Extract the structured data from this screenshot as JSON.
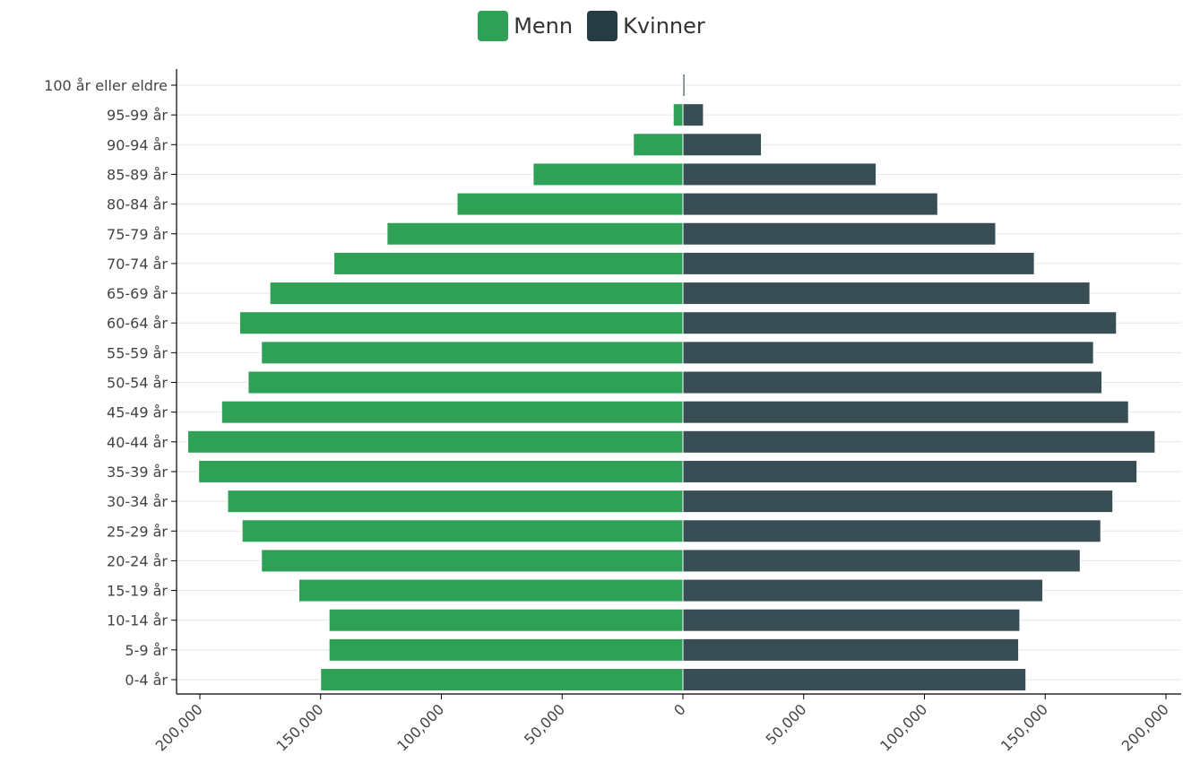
{
  "colors": {
    "men": "#2ea157",
    "women": "#384e54",
    "women_legend": "#253d42",
    "grid": "#e6e6e6",
    "axis": "#000000",
    "label": "#444444"
  },
  "chart_data": {
    "type": "bar",
    "orientation": "horizontal",
    "layout": "population-pyramid",
    "legend": [
      {
        "name": "Menn",
        "color": "#2ea157"
      },
      {
        "name": "Kvinner",
        "color": "#253d42"
      }
    ],
    "legend_position": "top-center",
    "categories": [
      "0-4 år",
      "5-9 år",
      "10-14 år",
      "15-19 år",
      "20-24 år",
      "25-29 år",
      "30-34 år",
      "35-39 år",
      "40-44 år",
      "45-49 år",
      "50-54 år",
      "55-59 år",
      "60-64 år",
      "65-69 år",
      "70-74 år",
      "75-79 år",
      "80-84 år",
      "85-89 år",
      "90-94 år",
      "95-99 år",
      "100 år eller eldre"
    ],
    "series": [
      {
        "name": "Menn",
        "values": [
          150000,
          146500,
          146500,
          159000,
          174500,
          182500,
          188500,
          200500,
          205000,
          191000,
          180000,
          174500,
          183500,
          171000,
          144500,
          122500,
          93500,
          62000,
          20500,
          4000,
          300
        ]
      },
      {
        "name": "Kvinner",
        "values": [
          142000,
          139000,
          139500,
          149000,
          164500,
          173000,
          178000,
          188000,
          195500,
          184500,
          173500,
          170000,
          179500,
          168500,
          145500,
          129500,
          105500,
          80000,
          32500,
          8500,
          800
        ]
      }
    ],
    "x_ticks": [
      {
        "value": -200000,
        "label": "200,000"
      },
      {
        "value": -150000,
        "label": "150,000"
      },
      {
        "value": -100000,
        "label": "100,000"
      },
      {
        "value": -50000,
        "label": "50,000"
      },
      {
        "value": 0,
        "label": "0"
      },
      {
        "value": 50000,
        "label": "50,000"
      },
      {
        "value": 100000,
        "label": "100,000"
      },
      {
        "value": 150000,
        "label": "150,000"
      },
      {
        "value": 200000,
        "label": "200,000"
      }
    ],
    "xlim": [
      -210000,
      206000
    ],
    "grid": true,
    "title": "",
    "xlabel": "",
    "ylabel": ""
  }
}
